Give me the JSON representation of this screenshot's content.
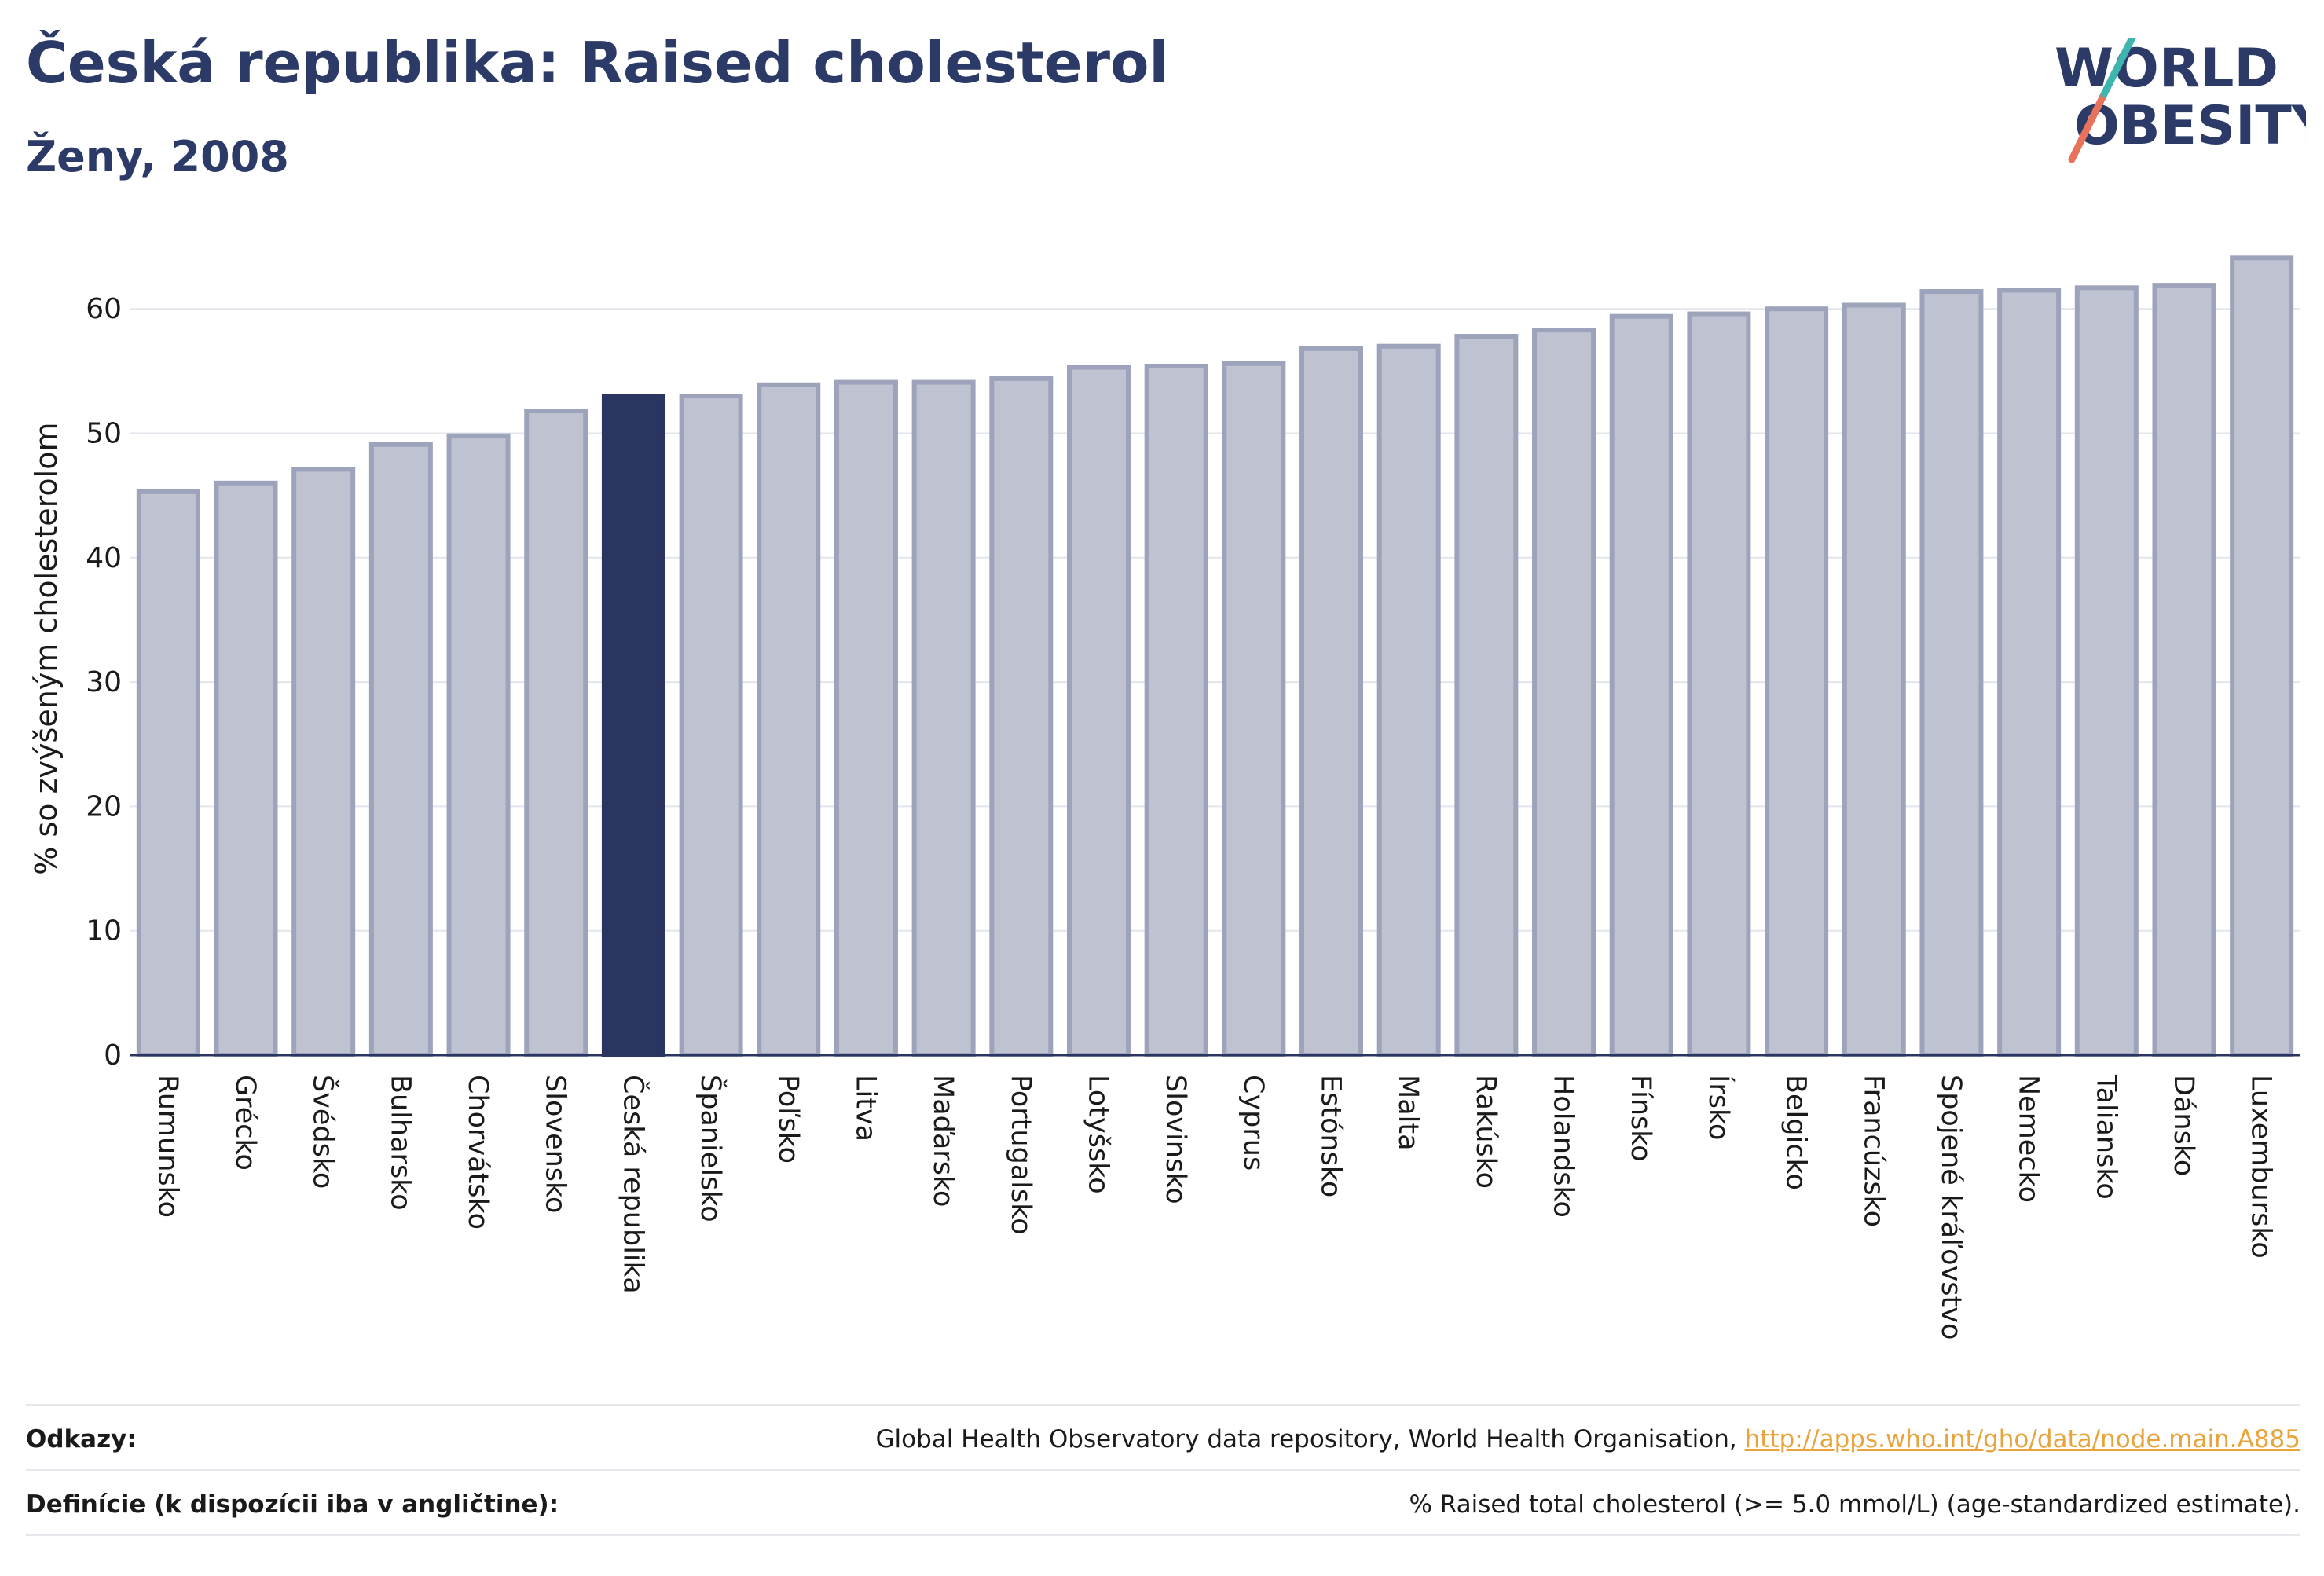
{
  "header": {
    "title": "Česká republika: Raised cholesterol",
    "subtitle": "Ženy, 2008"
  },
  "logo": {
    "line1": "WORLD",
    "line2": "OBESITY"
  },
  "chart_data": {
    "type": "bar",
    "ylabel": "% so zvýšeným cholesterolom",
    "ylim": [
      0,
      66
    ],
    "yticks": [
      0,
      10,
      20,
      30,
      40,
      50,
      60
    ],
    "grid": true,
    "highlight": "Česká republika",
    "colors": {
      "bar": "#bfc2d0",
      "bar_border": "#9ea3bc",
      "highlight": "#2b3561"
    },
    "categories": [
      "Rumunsko",
      "Grécko",
      "Švédsko",
      "Bulharsko",
      "Chorvátsko",
      "Slovensko",
      "Česká republika",
      "Španielsko",
      "Poľsko",
      "Litva",
      "Maďarsko",
      "Portugalsko",
      "Lotyšsko",
      "Slovinsko",
      "Cyprus",
      "Estónsko",
      "Malta",
      "Rakúsko",
      "Holandsko",
      "Fínsko",
      "Írsko",
      "Belgicko",
      "Francúzsko",
      "Spojené kráľovstvo",
      "Nemecko",
      "Taliansko",
      "Dánsko",
      "Luxembursko"
    ],
    "values": [
      45.3,
      46.0,
      47.1,
      49.1,
      49.8,
      51.8,
      53.0,
      53.0,
      53.9,
      54.1,
      54.1,
      54.4,
      55.3,
      55.4,
      55.6,
      56.8,
      57.0,
      57.8,
      58.3,
      59.4,
      59.6,
      60.0,
      60.3,
      61.4,
      61.5,
      61.7,
      61.9,
      64.1
    ]
  },
  "footer": {
    "refs_label": "Odkazy:",
    "refs_text": "Global Health Observatory data repository, World Health Organisation, ",
    "refs_link": "http://apps.who.int/gho/data/node.main.A885",
    "defs_label": "Definície (k dispozícii iba v angličtine):",
    "defs_text": "% Raised total cholesterol (>= 5.0 mmol/L) (age-standardized estimate)."
  }
}
